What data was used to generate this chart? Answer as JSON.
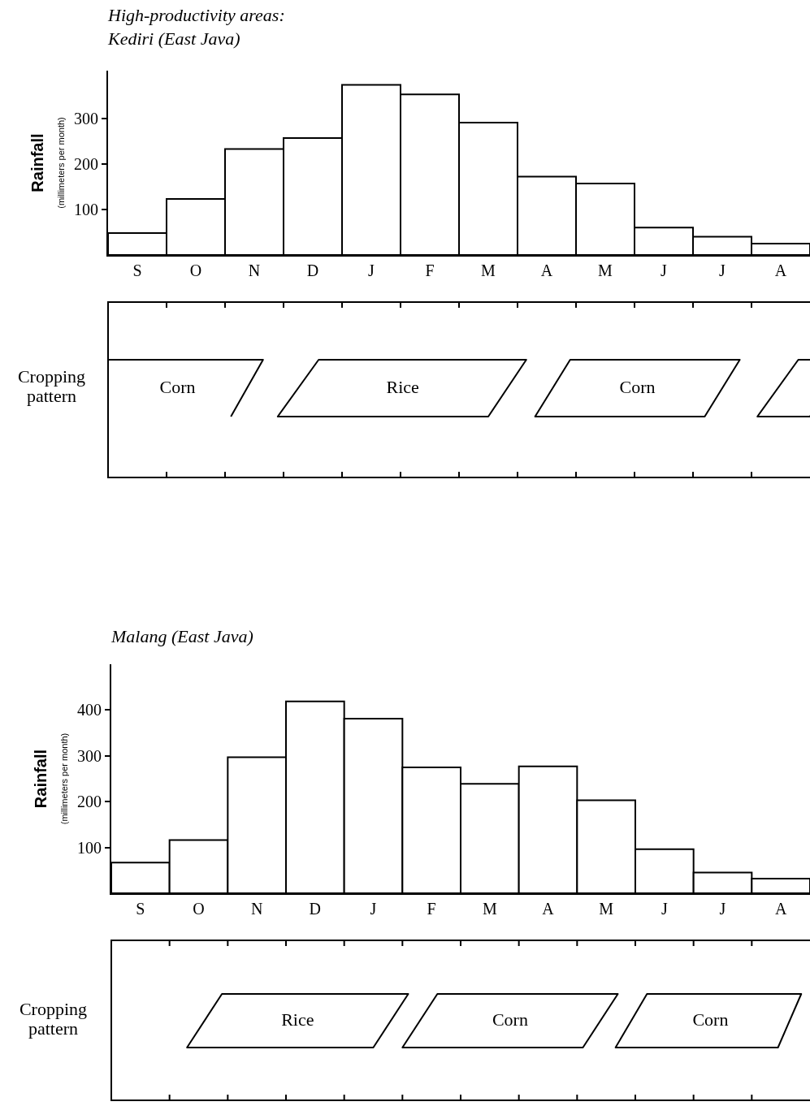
{
  "chart_data": [
    {
      "type": "bar",
      "title": "High-productivity areas:",
      "subtitle": "Kediri (East Java)",
      "ylabel": "Rainfall (millimeters per month)",
      "categories": [
        "S",
        "O",
        "N",
        "D",
        "J",
        "F",
        "M",
        "A",
        "M",
        "J",
        "J",
        "A"
      ],
      "values": [
        48,
        123,
        233,
        257,
        374,
        353,
        291,
        172,
        157,
        60,
        40,
        25
      ],
      "color": "#ffffff",
      "ylim": [
        0,
        405
      ],
      "yticks": [
        100,
        200,
        300
      ],
      "annotations": [
        "Cropping pattern",
        "Corn",
        "Rice",
        "Corn"
      ]
    },
    {
      "type": "bar",
      "title": "Malang (East Java)",
      "ylabel": "Rainfall (millimeters per month)",
      "categories": [
        "S",
        "O",
        "N",
        "D",
        "J",
        "F",
        "M",
        "A",
        "M",
        "J",
        "J",
        "A"
      ],
      "values": [
        67,
        116,
        297,
        419,
        381,
        275,
        239,
        277,
        203,
        96,
        45,
        32
      ],
      "color": "#ffffff",
      "ylim": [
        0,
        500
      ],
      "yticks": [
        100,
        200,
        300,
        400
      ],
      "annotations": [
        "Cropping pattern",
        "Rice",
        "Corn",
        "Corn"
      ]
    }
  ]
}
